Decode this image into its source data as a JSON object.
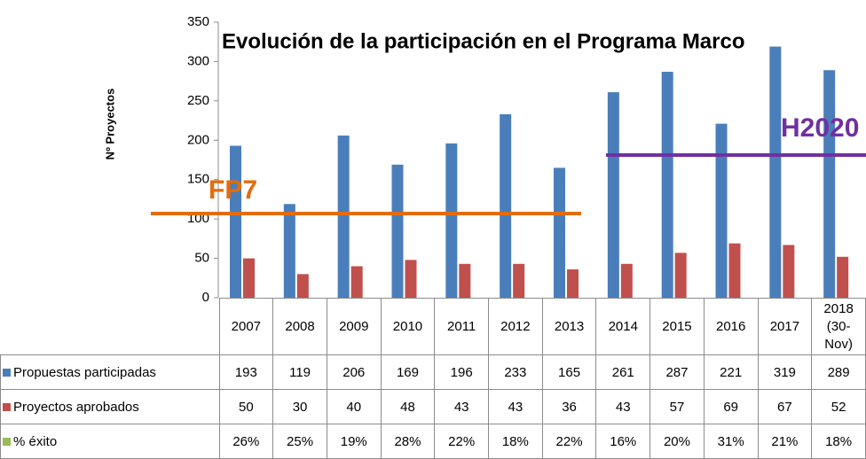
{
  "chart_data": {
    "type": "bar",
    "title": "Evolución de la participación en el Programa Marco",
    "y_label": "Nº Proyectos",
    "categories": [
      "2007",
      "2008",
      "2009",
      "2010",
      "2011",
      "2012",
      "2013",
      "2014",
      "2015",
      "2016",
      "2017",
      "2018 (30-Nov)"
    ],
    "series": [
      {
        "name": "Propuestas participadas",
        "color": "#4a7ebb",
        "values": [
          193,
          119,
          206,
          169,
          196,
          233,
          165,
          261,
          287,
          221,
          319,
          289
        ]
      },
      {
        "name": "Proyectos aprobados",
        "color": "#c0504d",
        "values": [
          50,
          30,
          40,
          48,
          43,
          43,
          36,
          43,
          57,
          69,
          67,
          52
        ]
      },
      {
        "name": "% éxito",
        "color": "#9bbb59",
        "values": [
          26,
          25,
          19,
          28,
          22,
          18,
          22,
          16,
          20,
          31,
          21,
          18
        ],
        "value_labels": [
          "26%",
          "25%",
          "19%",
          "28%",
          "22%",
          "18%",
          "22%",
          "16%",
          "20%",
          "31%",
          "21%",
          "18%"
        ]
      }
    ],
    "ylim": [
      0,
      350
    ],
    "yticks": [
      0,
      50,
      100,
      150,
      200,
      250,
      300,
      350
    ],
    "annotations": [
      {
        "text": "FP7",
        "color": "#e36c0a"
      },
      {
        "text": "H2020",
        "color": "#7030a0"
      }
    ]
  }
}
